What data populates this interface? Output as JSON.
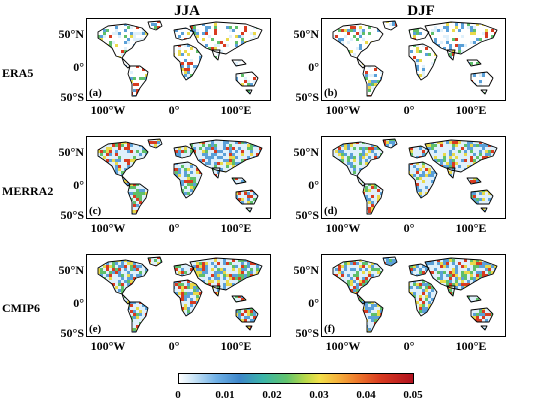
{
  "columns": [
    "JJA",
    "DJF"
  ],
  "rows": [
    "ERA5",
    "MERRA2",
    "CMIP6"
  ],
  "panel_letters": [
    "(a)",
    "(b)",
    "(c)",
    "(d)",
    "(e)",
    "(f)"
  ],
  "lat_ticks": [
    "50°N",
    "0°",
    "50°S"
  ],
  "lon_ticks": [
    "100°W",
    "0°",
    "100°E"
  ],
  "colorbar": {
    "ticks": [
      "0",
      "0.01",
      "0.02",
      "0.03",
      "0.04",
      "0.05"
    ],
    "colors": [
      "#ffffff",
      "#6fb0e6",
      "#3bb5a8",
      "#f2e04a",
      "#ee7a2c",
      "#b1121f"
    ]
  },
  "land_colors": {
    "low": "#dff0fb",
    "mid": "#5aa0d8",
    "green": "#5fbf6a",
    "yellow": "#e9d94a",
    "red": "#d83b20"
  }
}
